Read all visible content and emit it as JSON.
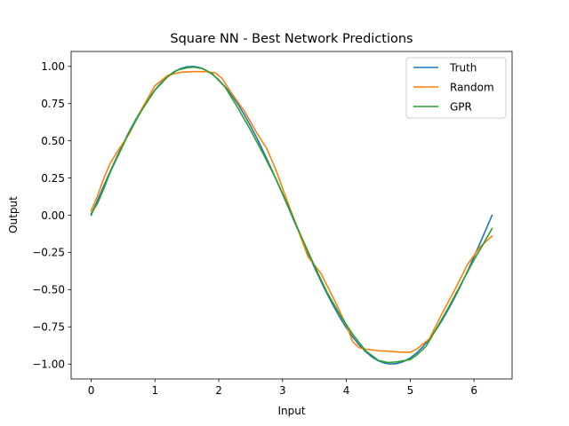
{
  "chart_data": {
    "type": "line",
    "title": "Square NN - Best Network Predictions",
    "xlabel": "Input",
    "ylabel": "Output",
    "xlim": [
      -0.314,
      6.597
    ],
    "ylim": [
      -1.1,
      1.1
    ],
    "xticks": [
      0,
      1,
      2,
      3,
      4,
      5,
      6
    ],
    "xtick_labels": [
      "0",
      "1",
      "2",
      "3",
      "4",
      "5",
      "6"
    ],
    "yticks": [
      -1.0,
      -0.75,
      -0.5,
      -0.25,
      0.0,
      0.25,
      0.5,
      0.75,
      1.0
    ],
    "ytick_labels": [
      "−1.00",
      "−0.75",
      "−0.50",
      "−0.25",
      "0.00",
      "0.25",
      "0.50",
      "0.75",
      "1.00"
    ],
    "grid": false,
    "legend_position": "top-right",
    "series": [
      {
        "name": "Truth",
        "color": "#1f77b4",
        "x": [
          0,
          0.1,
          0.2,
          0.3,
          0.4,
          0.5,
          0.6,
          0.7,
          0.8,
          0.9,
          1.0,
          1.1,
          1.2,
          1.3,
          1.4,
          1.5,
          1.6,
          1.7,
          1.8,
          1.9,
          2.0,
          2.1,
          2.2,
          2.3,
          2.4,
          2.5,
          2.6,
          2.7,
          2.8,
          2.9,
          3.0,
          3.1,
          3.2,
          3.3,
          3.4,
          3.5,
          3.6,
          3.7,
          3.8,
          3.9,
          4.0,
          4.1,
          4.2,
          4.3,
          4.4,
          4.5,
          4.6,
          4.7,
          4.8,
          4.9,
          5.0,
          5.1,
          5.2,
          5.3,
          5.4,
          5.5,
          5.6,
          5.7,
          5.8,
          5.9,
          6.0,
          6.1,
          6.2,
          6.283
        ],
        "y": [
          0.0,
          0.1,
          0.199,
          0.296,
          0.389,
          0.479,
          0.565,
          0.644,
          0.717,
          0.783,
          0.841,
          0.891,
          0.932,
          0.964,
          0.985,
          0.997,
          1.0,
          0.992,
          0.974,
          0.946,
          0.909,
          0.863,
          0.808,
          0.746,
          0.675,
          0.598,
          0.516,
          0.427,
          0.335,
          0.239,
          0.141,
          0.042,
          -0.058,
          -0.158,
          -0.256,
          -0.351,
          -0.443,
          -0.53,
          -0.612,
          -0.688,
          -0.757,
          -0.818,
          -0.872,
          -0.916,
          -0.952,
          -0.978,
          -0.994,
          -1.0,
          -0.996,
          -0.982,
          -0.959,
          -0.926,
          -0.883,
          -0.832,
          -0.773,
          -0.706,
          -0.631,
          -0.551,
          -0.465,
          -0.374,
          -0.279,
          -0.182,
          -0.083,
          0.0
        ]
      },
      {
        "name": "Random",
        "color": "#ff7f0e",
        "x": [
          0,
          0.1,
          0.2,
          0.3,
          0.4,
          0.6,
          0.8,
          1.0,
          1.2,
          1.4,
          1.6,
          1.8,
          1.95,
          2.05,
          2.2,
          2.4,
          2.6,
          2.75,
          2.9,
          3.0,
          3.2,
          3.4,
          3.6,
          3.8,
          4.0,
          4.1,
          4.2,
          4.3,
          4.5,
          4.7,
          4.85,
          5.0,
          5.1,
          5.3,
          5.5,
          5.7,
          5.9,
          6.1,
          6.283
        ],
        "y": [
          0.03,
          0.13,
          0.25,
          0.35,
          0.42,
          0.55,
          0.72,
          0.87,
          0.94,
          0.96,
          0.965,
          0.965,
          0.955,
          0.92,
          0.82,
          0.7,
          0.55,
          0.45,
          0.3,
          0.18,
          -0.05,
          -0.28,
          -0.39,
          -0.56,
          -0.74,
          -0.85,
          -0.89,
          -0.9,
          -0.91,
          -0.915,
          -0.92,
          -0.92,
          -0.9,
          -0.83,
          -0.66,
          -0.5,
          -0.33,
          -0.21,
          -0.14
        ]
      },
      {
        "name": "GPR",
        "color": "#2ca02c",
        "x": [
          0,
          0.1,
          0.2,
          0.3,
          0.4,
          0.6,
          0.8,
          1.0,
          1.2,
          1.35,
          1.5,
          1.6,
          1.75,
          1.9,
          2.1,
          2.3,
          2.5,
          2.7,
          2.9,
          3.1,
          3.3,
          3.5,
          3.7,
          3.9,
          4.1,
          4.3,
          4.5,
          4.65,
          4.8,
          5.0,
          5.1,
          5.25,
          5.4,
          5.6,
          5.8,
          6.0,
          6.15,
          6.283
        ],
        "y": [
          0.01,
          0.08,
          0.18,
          0.29,
          0.38,
          0.56,
          0.71,
          0.84,
          0.93,
          0.975,
          0.99,
          0.995,
          0.985,
          0.95,
          0.86,
          0.72,
          0.57,
          0.41,
          0.24,
          0.05,
          -0.15,
          -0.34,
          -0.52,
          -0.67,
          -0.8,
          -0.91,
          -0.975,
          -0.99,
          -0.985,
          -0.97,
          -0.94,
          -0.88,
          -0.77,
          -0.62,
          -0.46,
          -0.3,
          -0.19,
          -0.09
        ]
      }
    ]
  }
}
